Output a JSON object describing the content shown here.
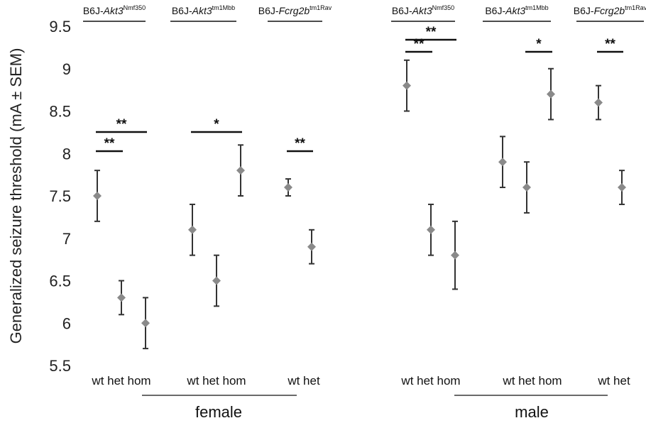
{
  "chart_data": {
    "type": "scatter",
    "ylabel": "Generalized seizure threshold (mA ± SEM)",
    "ylim": [
      5.5,
      9.5
    ],
    "yticks": [
      "5.5",
      "6",
      "6.5",
      "7",
      "7.5",
      "8",
      "8.5",
      "9",
      "9.5"
    ],
    "marker_color": "#8a8a8a",
    "errorbar_color": "#333333",
    "sexes": [
      {
        "label": "female",
        "group_indices": [
          0,
          1,
          2
        ]
      },
      {
        "label": "male",
        "group_indices": [
          3,
          4,
          5
        ]
      }
    ],
    "groups": [
      {
        "strain_prefix": "B6J-",
        "gene": "Akt3",
        "allele": "Nmf350",
        "genotype_text": "wt het hom",
        "points": [
          {
            "genotype": "wt",
            "mean": 7.5,
            "sem": 0.3
          },
          {
            "genotype": "het",
            "mean": 6.3,
            "sem": 0.2
          },
          {
            "genotype": "hom",
            "mean": 6.0,
            "sem": 0.3
          }
        ],
        "significance": [
          {
            "from": "wt",
            "to": "het",
            "label": "**"
          },
          {
            "from": "wt",
            "to": "hom",
            "label": "**"
          }
        ]
      },
      {
        "strain_prefix": "B6J-",
        "gene": "Akt3",
        "allele": "tm1Mbb",
        "genotype_text": "wt het hom",
        "points": [
          {
            "genotype": "wt",
            "mean": 7.1,
            "sem": 0.3
          },
          {
            "genotype": "het",
            "mean": 6.5,
            "sem": 0.3
          },
          {
            "genotype": "hom",
            "mean": 7.8,
            "sem": 0.3
          }
        ],
        "significance": [
          {
            "from": "wt",
            "to": "hom",
            "label": "*"
          }
        ]
      },
      {
        "strain_prefix": "B6J-",
        "gene": "Fcrg2b",
        "allele": "tm1Rav",
        "genotype_text": "wt het",
        "points": [
          {
            "genotype": "wt",
            "mean": 7.6,
            "sem": 0.1
          },
          {
            "genotype": "het",
            "mean": 6.9,
            "sem": 0.2
          }
        ],
        "significance": [
          {
            "from": "wt",
            "to": "het",
            "label": "**"
          }
        ]
      },
      {
        "strain_prefix": "B6J-",
        "gene": "Akt3",
        "allele": "Nmf350",
        "genotype_text": "wt het hom",
        "points": [
          {
            "genotype": "wt",
            "mean": 8.8,
            "sem": 0.3
          },
          {
            "genotype": "het",
            "mean": 7.1,
            "sem": 0.3
          },
          {
            "genotype": "hom",
            "mean": 6.8,
            "sem": 0.4
          }
        ],
        "significance": [
          {
            "from": "wt",
            "to": "het",
            "label": "**"
          },
          {
            "from": "wt",
            "to": "hom",
            "label": "**"
          }
        ]
      },
      {
        "strain_prefix": "B6J-",
        "gene": "Akt3",
        "allele": "tm1Mbb",
        "genotype_text": "wt het hom",
        "points": [
          {
            "genotype": "wt",
            "mean": 7.9,
            "sem": 0.3
          },
          {
            "genotype": "het",
            "mean": 7.6,
            "sem": 0.3
          },
          {
            "genotype": "hom",
            "mean": 8.7,
            "sem": 0.3
          }
        ],
        "significance": [
          {
            "from": "het",
            "to": "hom",
            "label": "*"
          }
        ]
      },
      {
        "strain_prefix": "B6J-",
        "gene": "Fcrg2b",
        "allele": "tm1Rav",
        "genotype_text": "wt het",
        "points": [
          {
            "genotype": "wt",
            "mean": 8.6,
            "sem": 0.2
          },
          {
            "genotype": "het",
            "mean": 7.6,
            "sem": 0.2
          }
        ],
        "significance": [
          {
            "from": "wt",
            "to": "het",
            "label": "**"
          }
        ]
      }
    ]
  }
}
